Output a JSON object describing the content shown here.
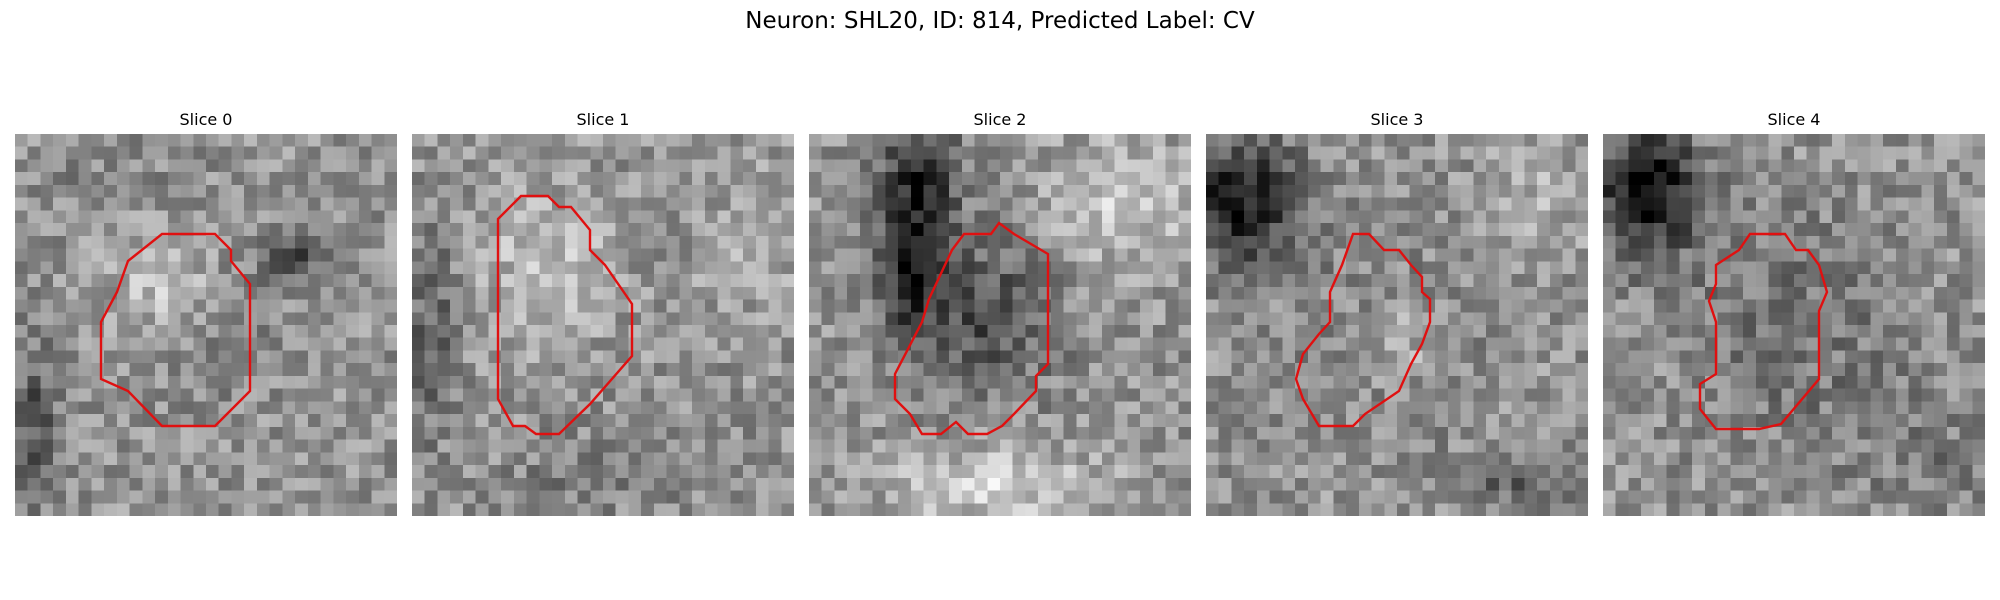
{
  "figure": {
    "title": "Neuron: SHL20, ID: 814, Predicted Label: CV"
  },
  "contour_color": "#e01010",
  "panels": [
    {
      "title": "Slice 0"
    },
    {
      "title": "Slice 1"
    },
    {
      "title": "Slice 2"
    },
    {
      "title": "Slice 3"
    },
    {
      "title": "Slice 4"
    }
  ]
}
